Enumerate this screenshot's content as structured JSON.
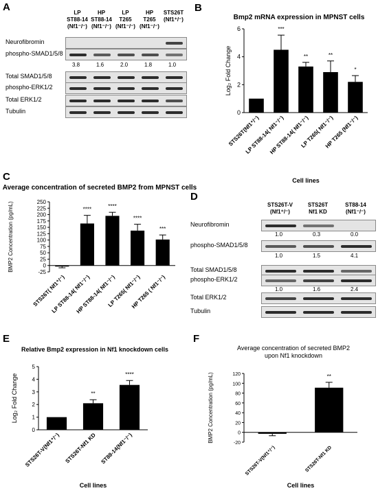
{
  "panels": {
    "A": {
      "label": "A",
      "lanes": [
        "LP ST88-14 (Nf1-/-)",
        "HP ST88-14 (Nf1-/-)",
        "LP T265 (Nf1-/-)",
        "HP T265 (Nf1-/-)",
        "STS26T (Nf1+/-)"
      ],
      "lane_lines": [
        [
          "LP",
          "ST88-14",
          "(Nf1⁻/⁻)"
        ],
        [
          "HP",
          "ST88-14",
          "(Nf1⁻/⁻)"
        ],
        [
          "LP",
          "T265",
          "(Nf1⁻/⁻)"
        ],
        [
          "HP",
          "T265",
          "(Nf1⁻/⁻)"
        ],
        [
          "STS26T",
          "(Nf1⁺/⁻)",
          ""
        ]
      ],
      "rows": [
        "Neurofibromin",
        "phospho-SMAD1/5/8",
        "Total SMAD1/5/8",
        "phospho-ERK1/2",
        "Total ERK1/2",
        "Tubulin"
      ],
      "psmad_quant": [
        "3.8",
        "1.6",
        "2.0",
        "1.8",
        "1.0"
      ]
    },
    "D": {
      "label": "D",
      "lane_lines": [
        [
          "STS26T-V",
          "(Nf1⁺/⁻)"
        ],
        [
          "STS26T",
          "Nf1 KD"
        ],
        [
          "ST88-14",
          "(Nf1⁻/⁻)"
        ]
      ],
      "rows": [
        "Neurofibromin",
        "phospho-SMAD1/5/8",
        "Total SMAD1/5/8",
        "phospho-ERK1/2",
        "Total ERK1/2",
        "Tubulin"
      ],
      "nf1_quant": [
        "1.0",
        "0.3",
        "0.0"
      ],
      "psmad_quant": [
        "1.0",
        "1.5",
        "4.1"
      ],
      "perk_quant": [
        "1.0",
        "1.6",
        "2.4"
      ]
    }
  },
  "chart_data": [
    {
      "panel": "B",
      "type": "bar",
      "title": "Bmp2 mRNA expression in MPNST cells",
      "ylabel": "Log₂ Fold Change",
      "xlabel": "Cell lines",
      "categories": [
        "STS26T (Nf1+/-)",
        "LP ST88-14 (Nf1-/-)",
        "HP ST88-14 (Nf1-/-)",
        "LP T265 (Nf1-/-)",
        "HP T265 (Nf1-/-)"
      ],
      "category_labels": [
        "STS26T(Nf1⁺/⁻)",
        "LP ST88-14( Nf1⁻/⁻)",
        "HP ST88-14( Nf1⁻/⁻)",
        "LP T265( Nf1⁻/⁻)",
        "HP T265 (Nf1⁻/⁻)"
      ],
      "values": [
        1.0,
        4.5,
        3.3,
        2.9,
        2.2
      ],
      "errors": [
        0,
        1.05,
        0.3,
        0.8,
        0.45
      ],
      "significance": [
        "",
        "***",
        "**",
        "**",
        "*"
      ],
      "ylim": [
        0,
        6
      ],
      "yticks": [
        0,
        2,
        4,
        6
      ]
    },
    {
      "panel": "C",
      "type": "bar",
      "title": "Average concentration of secreted BMP2 from MPNST cells",
      "ylabel": "BMP2 Concentration (pg/mL)",
      "xlabel": "",
      "categories": [
        "STS26T (Nf1+/-)",
        "LP ST88-14 (Nf1-/-)",
        "HP ST88-14 (Nf1-/-)",
        "LP T265 (Nf1-/-)",
        "HP T265 (Nf1-/-)"
      ],
      "category_labels": [
        "STS26T( Nf1⁺/⁻)",
        "LP ST88-14( Nf1⁻/⁻)",
        "HP ST88-14( Nf1⁻/⁻)",
        "LP T265( Nf1⁻/⁻)",
        "HP T265 ( Nf1⁻/⁻)"
      ],
      "values": [
        -4,
        165,
        195,
        137,
        102
      ],
      "errors": [
        5,
        32,
        14,
        25,
        18
      ],
      "significance": [
        "",
        "****",
        "****",
        "****",
        "***"
      ],
      "ylim": [
        -25,
        250
      ],
      "yticks": [
        -25,
        0,
        25,
        50,
        75,
        100,
        125,
        150,
        175,
        200,
        225,
        250
      ]
    },
    {
      "panel": "E",
      "type": "bar",
      "title": "Relative Bmp2 expression in Nf1 knockdown cells",
      "ylabel": "Log₂ Fold Change",
      "xlabel": "Cell lines",
      "categories": [
        "STS26T-V (Nf1+/-)",
        "STS26T-Nf1 KD",
        "ST88-14 (Nf1-/-)"
      ],
      "category_labels": [
        "STS26T-V(Nf1⁺/⁻)",
        "STS26T-Nf1 KD",
        "ST88-14(Nf1⁻/⁻)"
      ],
      "values": [
        1.0,
        2.1,
        3.55
      ],
      "errors": [
        0,
        0.28,
        0.35
      ],
      "significance": [
        "",
        "**",
        "****"
      ],
      "ylim": [
        0,
        5
      ],
      "yticks": [
        0,
        1,
        2,
        3,
        4,
        5
      ]
    },
    {
      "panel": "F",
      "type": "bar",
      "title": "Average concentration of secreted BMP2 upon Nf1 knockdown",
      "title_lines": [
        "Average concentration of secreted BMP2",
        "upon Nf1 knockdown"
      ],
      "ylabel": "BMP2 Concentration (pg/mL)",
      "xlabel": "Cell lines",
      "categories": [
        "STS26T-V (Nf1+/-)",
        "STS26T-Nf1 KD"
      ],
      "category_labels": [
        "STS26T-V(Nf1⁺/⁻)",
        "STS26T-Nf1 KD"
      ],
      "values": [
        -3,
        91
      ],
      "errors": [
        4,
        11
      ],
      "significance": [
        "",
        "**"
      ],
      "ylim": [
        -20,
        120
      ],
      "yticks": [
        -20,
        0,
        20,
        40,
        60,
        80,
        100,
        120
      ]
    }
  ],
  "colors": {
    "bar": "#000000",
    "axis": "#000000",
    "blot_bg": "#e4e4e4"
  }
}
